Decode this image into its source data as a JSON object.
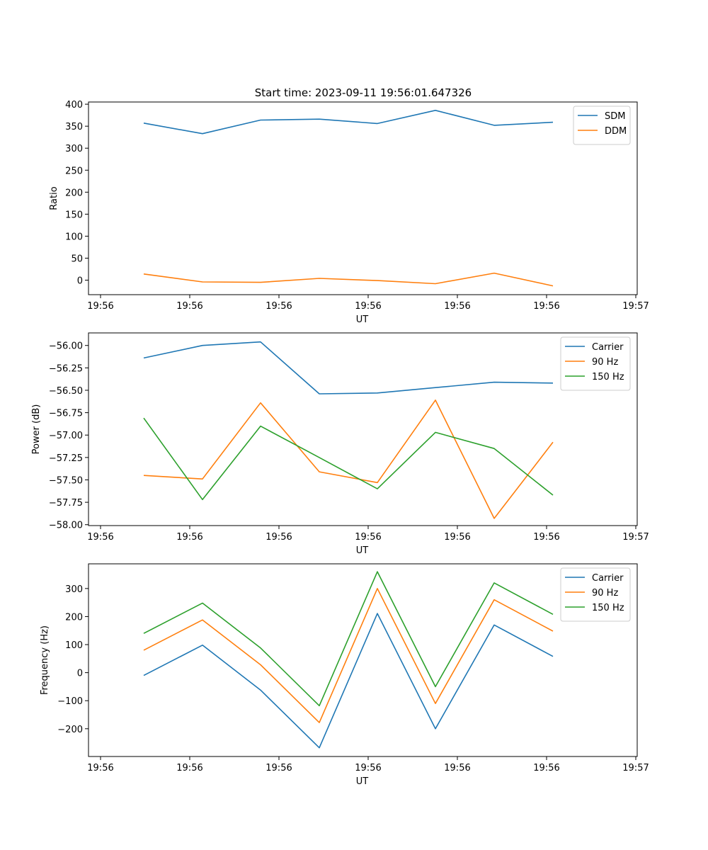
{
  "figure_title": "Start time: 2023-09-11 19:56:01.647326",
  "colors": {
    "c0": "#1f77b4",
    "c1": "#ff7f0e",
    "c2": "#2ca02c"
  },
  "chart_data": [
    {
      "type": "line",
      "title": "Start time: 2023-09-11 19:56:01.647326",
      "xlabel": "UT",
      "ylabel": "Ratio",
      "x_tick_labels": [
        "19:56",
        "19:56",
        "19:56",
        "19:56",
        "19:56",
        "19:56",
        "19:56"
      ],
      "x_tick_labels_right": "19:57",
      "y_ticks": [
        0,
        50,
        100,
        150,
        200,
        250,
        300,
        350,
        400
      ],
      "y_tick_labels": [
        "0",
        "50",
        "100",
        "150",
        "200",
        "250",
        "300",
        "350",
        "400"
      ],
      "ylim": [
        -33,
        405
      ],
      "legend_position": "upper-right",
      "series": [
        {
          "name": "SDM",
          "color": "#1f77b4",
          "values": [
            357,
            333,
            364,
            366,
            356,
            386,
            352,
            359
          ]
        },
        {
          "name": "DDM",
          "color": "#ff7f0e",
          "values": [
            14,
            -4,
            -5,
            4,
            -1,
            -8,
            16,
            -13
          ]
        }
      ]
    },
    {
      "type": "line",
      "title": "",
      "xlabel": "UT",
      "ylabel": "Power (dB)",
      "x_tick_labels": [
        "19:56",
        "19:56",
        "19:56",
        "19:56",
        "19:56",
        "19:56",
        "19:56"
      ],
      "x_tick_labels_right": "19:57",
      "y_ticks": [
        -58.0,
        -57.75,
        -57.5,
        -57.25,
        -57.0,
        -56.75,
        -56.5,
        -56.25,
        -56.0
      ],
      "y_tick_labels": [
        "−58.00",
        "−57.75",
        "−57.50",
        "−57.25",
        "−57.00",
        "−56.75",
        "−56.50",
        "−56.25",
        "−56.00"
      ],
      "ylim": [
        -58.01,
        -55.86
      ],
      "legend_position": "upper-right",
      "series": [
        {
          "name": "Carrier",
          "color": "#1f77b4",
          "values": [
            -56.14,
            -56.0,
            -55.96,
            -56.54,
            -56.53,
            -56.47,
            -56.41,
            -56.42
          ]
        },
        {
          "name": "90 Hz",
          "color": "#ff7f0e",
          "values": [
            -57.45,
            -57.49,
            -56.64,
            -57.41,
            -57.53,
            -56.61,
            -57.93,
            -57.08
          ]
        },
        {
          "name": "150 Hz",
          "color": "#2ca02c",
          "values": [
            -56.81,
            -57.72,
            -56.9,
            -57.25,
            -57.6,
            -56.97,
            -57.15,
            -57.67
          ]
        }
      ]
    },
    {
      "type": "line",
      "title": "",
      "xlabel": "UT",
      "ylabel": "Frequency (Hz)",
      "x_tick_labels": [
        "19:56",
        "19:56",
        "19:56",
        "19:56",
        "19:56",
        "19:56",
        "19:56"
      ],
      "x_tick_labels_right": "19:57",
      "y_ticks": [
        -200,
        -100,
        0,
        100,
        200,
        300
      ],
      "y_tick_labels": [
        "−200",
        "−100",
        "0",
        "100",
        "200",
        "300"
      ],
      "ylim": [
        -299,
        388
      ],
      "legend_position": "upper-right",
      "series": [
        {
          "name": "Carrier",
          "color": "#1f77b4",
          "values": [
            -10,
            98,
            -62,
            -268,
            211,
            -200,
            170,
            58
          ]
        },
        {
          "name": "90 Hz",
          "color": "#ff7f0e",
          "values": [
            80,
            188,
            28,
            -178,
            300,
            -110,
            260,
            148
          ]
        },
        {
          "name": "150 Hz",
          "color": "#2ca02c",
          "values": [
            140,
            248,
            88,
            -118,
            360,
            -50,
            320,
            208
          ]
        }
      ]
    }
  ]
}
